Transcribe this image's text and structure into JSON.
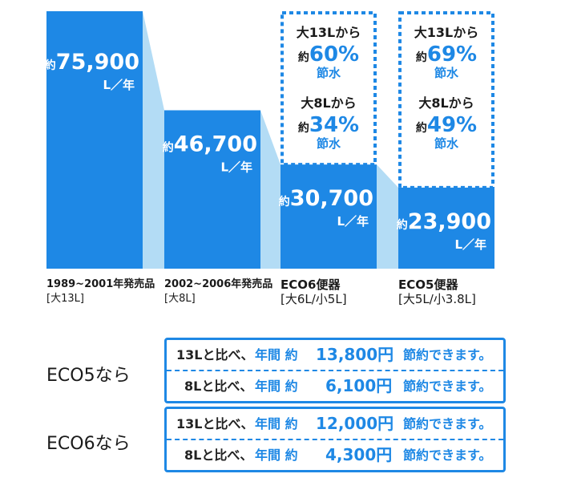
{
  "chart_data": {
    "type": "bar",
    "categories": [
      {
        "line1": "1989~2001年発売品",
        "line2": "[大13L]"
      },
      {
        "line1": "2002~2006年発売品",
        "line2": "[大8L]"
      },
      {
        "line1": "ECO6便器",
        "line2": "[大6L/小5L]"
      },
      {
        "line1": "ECO5便器",
        "line2": "[大5L/小3.8L]"
      }
    ],
    "values": [
      75900,
      46700,
      30700,
      23900
    ],
    "value_labels": [
      "約75,900",
      "約46,700",
      "約30,700",
      "約23,900"
    ],
    "unit_label": "L／年",
    "savings": [
      null,
      null,
      [
        {
          "from": "大13Lから",
          "pct": "約60%",
          "word": "節水"
        },
        {
          "from": "大8Lから",
          "pct": "約34%",
          "word": "節水"
        }
      ],
      [
        {
          "from": "大13Lから",
          "pct": "約69%",
          "word": "節水"
        },
        {
          "from": "大8Lから",
          "pct": "約49%",
          "word": "節水"
        }
      ]
    ],
    "colors": {
      "bar": "#1e88e5",
      "shadow": "#b3dcf5",
      "dotted": "#1e88e5"
    }
  },
  "summary": [
    {
      "label": "ECO5なら",
      "rows": [
        {
          "base": "13Lと比べ、",
          "kw": "年間 約",
          "amount": "13,800円",
          "tail": "節約できます。"
        },
        {
          "base": "8Lと比べ、",
          "kw": "年間 約",
          "amount": "6,100円",
          "tail": "節約できます。"
        }
      ]
    },
    {
      "label": "ECO6なら",
      "rows": [
        {
          "base": "13Lと比べ、",
          "kw": "年間 約",
          "amount": "12,000円",
          "tail": "節約できます。"
        },
        {
          "base": "8Lと比べ、",
          "kw": "年間 約",
          "amount": "4,300円",
          "tail": "節約できます。"
        }
      ]
    }
  ]
}
